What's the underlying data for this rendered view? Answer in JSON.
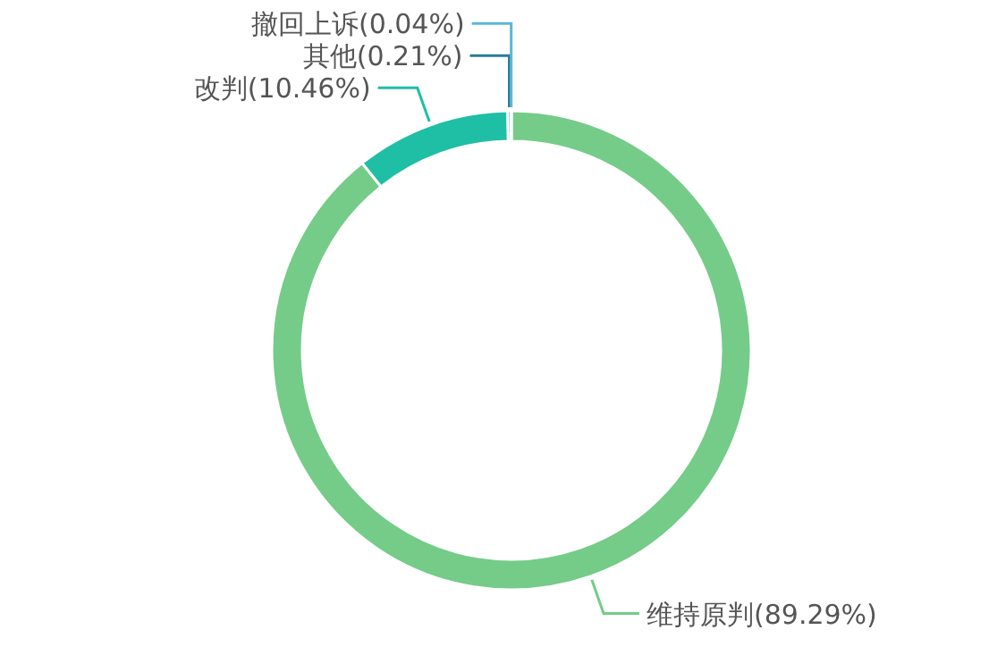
{
  "chart_data": {
    "type": "donut",
    "categories": [
      "维持原判(89.29%)",
      "改判(10.46%)",
      "其他(0.21%)",
      "撤回上诉(0.04%)"
    ],
    "values": [
      89.29,
      10.46,
      0.21,
      0.04
    ],
    "colors": [
      "#74cc88",
      "#1fbfa5",
      "#2a7c9c",
      "#5bb8d9"
    ]
  }
}
